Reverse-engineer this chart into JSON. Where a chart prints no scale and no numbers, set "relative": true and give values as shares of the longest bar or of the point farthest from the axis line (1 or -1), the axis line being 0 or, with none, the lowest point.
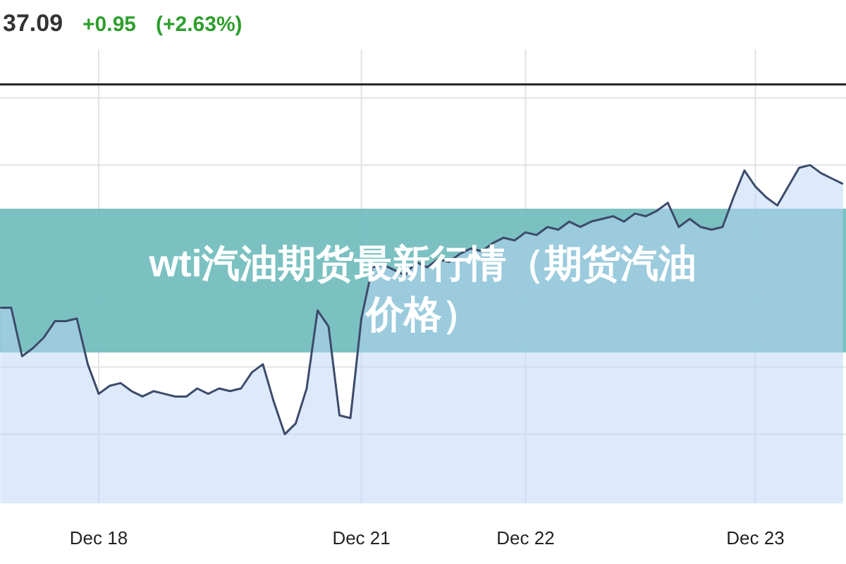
{
  "chart_data": {
    "type": "area",
    "title": "wti汽油期货最新行情（期货汽油价格）",
    "annotations": [
      "37.09",
      "+0.95",
      "(+2.63%)"
    ],
    "relative": true,
    "grid": true,
    "categories": [
      null,
      null,
      null,
      null,
      null,
      null,
      null,
      null,
      null,
      "Dec 18",
      null,
      null,
      null,
      null,
      null,
      null,
      null,
      null,
      null,
      null,
      null,
      null,
      null,
      null,
      null,
      null,
      null,
      null,
      null,
      null,
      null,
      null,
      null,
      "Dec 21",
      null,
      null,
      null,
      null,
      null,
      null,
      null,
      null,
      null,
      null,
      null,
      null,
      null,
      null,
      "Dec 22",
      null,
      null,
      null,
      null,
      null,
      null,
      null,
      null,
      null,
      null,
      null,
      null,
      null,
      null,
      null,
      null,
      null,
      null,
      null,
      null,
      "Dec 23",
      null,
      null,
      null,
      null,
      null,
      null,
      null,
      null
    ],
    "series": [
      {
        "color": "#3d4b6b",
        "values": [
          0.47,
          0.47,
          0.29,
          0.32,
          0.36,
          0.42,
          0.42,
          0.43,
          0.26,
          0.15,
          0.18,
          0.19,
          0.16,
          0.14,
          0.16,
          0.15,
          0.14,
          0.14,
          0.17,
          0.15,
          0.17,
          0.16,
          0.17,
          0.23,
          0.26,
          0.12,
          0,
          0.04,
          0.17,
          0.46,
          0.4,
          0.07,
          0.06,
          0.43,
          0.62,
          0.63,
          0.61,
          0.59,
          0.64,
          0.62,
          0.65,
          0.64,
          0.67,
          0.69,
          0.68,
          0.71,
          0.73,
          0.72,
          0.75,
          0.74,
          0.77,
          0.76,
          0.79,
          0.77,
          0.79,
          0.8,
          0.81,
          0.79,
          0.82,
          0.81,
          0.83,
          0.86,
          0.77,
          0.8,
          0.77,
          0.76,
          0.77,
          0.88,
          0.98,
          0.92,
          0.88,
          0.85,
          0.92,
          0.99,
          1,
          0.97,
          0.95,
          0.93
        ]
      }
    ],
    "ref_lines": [
      {
        "axis": "y",
        "value": 1.3,
        "color": "#222222"
      }
    ]
  }
}
